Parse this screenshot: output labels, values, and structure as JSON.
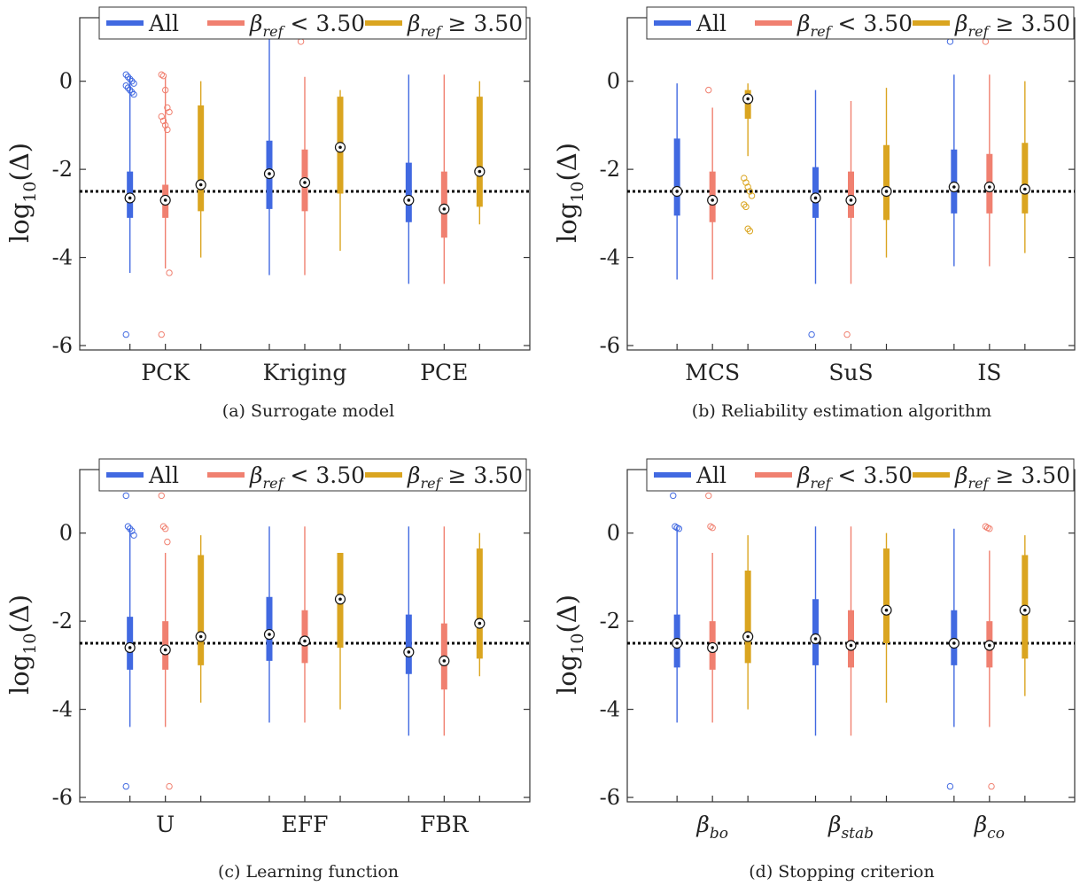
{
  "colors": {
    "all": "#4169e1",
    "low": "#f08070",
    "high": "#daa520",
    "ref_line": "#000000",
    "axis": "#333333"
  },
  "legend": {
    "all": "All",
    "low": {
      "symbol": "β",
      "sub": "ref",
      "rest": " < 3.50"
    },
    "high": {
      "symbol": "β",
      "sub": "ref",
      "rest": " ≥ 3.50"
    }
  },
  "chart_data": [
    {
      "type": "box",
      "caption": "(a) Surrogate model",
      "ylabel": {
        "text": "log",
        "sub": "10",
        "rest": "(Δ)"
      },
      "ylim": [
        -6.1,
        1.2
      ],
      "yticks": [
        0,
        -2,
        -4,
        -6
      ],
      "ytick_labels": [
        "0",
        "-2",
        "-4",
        "-6"
      ],
      "ref_line": -2.5,
      "categories": [
        {
          "label": "PCK",
          "groups": [
            {
              "series": "All",
              "whisker": [
                -4.35,
                0.1
              ],
              "box": [
                -3.1,
                -2.05
              ],
              "median": -2.65,
              "outliers": [
                0.15,
                0.1,
                0.05,
                0,
                -0.05,
                -0.1,
                -0.15,
                -0.2,
                -0.25,
                -0.3,
                -5.75
              ]
            },
            {
              "series": "β_ref < 3.50",
              "whisker": [
                -4.25,
                0.1
              ],
              "box": [
                -3.1,
                -2.35
              ],
              "median": -2.7,
              "outliers": [
                0.15,
                0.12,
                -0.2,
                -0.6,
                -0.7,
                -0.8,
                -0.9,
                -1.0,
                -1.1,
                -4.35,
                -5.75
              ]
            },
            {
              "series": "β_ref ≥ 3.50",
              "whisker": [
                -4.0,
                0.0
              ],
              "box": [
                -2.95,
                -0.55
              ],
              "median": -2.35,
              "outliers": []
            }
          ]
        },
        {
          "label": "Kriging",
          "groups": [
            {
              "series": "All",
              "whisker": [
                -4.4,
                0.95
              ],
              "box": [
                -2.9,
                -1.35
              ],
              "median": -2.1,
              "outliers": []
            },
            {
              "series": "β_ref < 3.50",
              "whisker": [
                -4.4,
                0.1
              ],
              "box": [
                -2.95,
                -1.55
              ],
              "median": -2.3,
              "outliers": [
                0.9
              ]
            },
            {
              "series": "β_ref ≥ 3.50",
              "whisker": [
                -3.85,
                -0.2
              ],
              "box": [
                -2.55,
                -0.35
              ],
              "median": -1.5,
              "outliers": []
            }
          ]
        },
        {
          "label": "PCE",
          "groups": [
            {
              "series": "All",
              "whisker": [
                -4.6,
                0.15
              ],
              "box": [
                -3.2,
                -1.85
              ],
              "median": -2.7,
              "outliers": []
            },
            {
              "series": "β_ref < 3.50",
              "whisker": [
                -4.6,
                0.15
              ],
              "box": [
                -3.55,
                -2.05
              ],
              "median": -2.9,
              "outliers": []
            },
            {
              "series": "β_ref ≥ 3.50",
              "whisker": [
                -3.25,
                0.0
              ],
              "box": [
                -2.85,
                -0.35
              ],
              "median": -2.05,
              "outliers": []
            }
          ]
        }
      ]
    },
    {
      "type": "box",
      "caption": "(b) Reliability estimation algorithm",
      "ylabel": {
        "text": "log",
        "sub": "10",
        "rest": "(Δ)"
      },
      "ylim": [
        -6.1,
        1.2
      ],
      "yticks": [
        0,
        -2,
        -4,
        -6
      ],
      "ytick_labels": [
        "0",
        "-2",
        "-4",
        "-6"
      ],
      "ref_line": -2.5,
      "categories": [
        {
          "label": "MCS",
          "groups": [
            {
              "series": "All",
              "whisker": [
                -4.5,
                -0.05
              ],
              "box": [
                -3.05,
                -1.3
              ],
              "median": -2.5,
              "outliers": []
            },
            {
              "series": "β_ref < 3.50",
              "whisker": [
                -4.5,
                -0.6
              ],
              "box": [
                -3.2,
                -2.05
              ],
              "median": -2.7,
              "outliers": [
                -0.2
              ]
            },
            {
              "series": "β_ref ≥ 3.50",
              "whisker": [
                -1.7,
                -0.05
              ],
              "box": [
                -0.85,
                -0.2
              ],
              "median": -0.4,
              "outliers": [
                -2.2,
                -2.3,
                -2.4,
                -2.5,
                -2.6,
                -2.8,
                -2.85,
                -3.35,
                -3.4
              ]
            }
          ]
        },
        {
          "label": "SuS",
          "groups": [
            {
              "series": "All",
              "whisker": [
                -4.6,
                -0.2
              ],
              "box": [
                -3.1,
                -1.95
              ],
              "median": -2.65,
              "outliers": [
                -5.75
              ]
            },
            {
              "series": "β_ref < 3.50",
              "whisker": [
                -4.6,
                -0.45
              ],
              "box": [
                -3.1,
                -2.05
              ],
              "median": -2.7,
              "outliers": [
                -5.75
              ]
            },
            {
              "series": "β_ref ≥ 3.50",
              "whisker": [
                -4.0,
                -0.15
              ],
              "box": [
                -3.15,
                -1.45
              ],
              "median": -2.5,
              "outliers": []
            }
          ]
        },
        {
          "label": "IS",
          "groups": [
            {
              "series": "All",
              "whisker": [
                -4.2,
                0.15
              ],
              "box": [
                -3.0,
                -1.55
              ],
              "median": -2.4,
              "outliers": [
                0.9
              ]
            },
            {
              "series": "β_ref < 3.50",
              "whisker": [
                -4.2,
                0.15
              ],
              "box": [
                -3.0,
                -1.65
              ],
              "median": -2.4,
              "outliers": [
                0.9
              ]
            },
            {
              "series": "β_ref ≥ 3.50",
              "whisker": [
                -3.9,
                0.0
              ],
              "box": [
                -3.0,
                -1.4
              ],
              "median": -2.45,
              "outliers": []
            }
          ]
        }
      ]
    },
    {
      "type": "box",
      "caption": "(c) Learning function",
      "ylabel": {
        "text": "log",
        "sub": "10",
        "rest": "(Δ)"
      },
      "ylim": [
        -6.1,
        1.2
      ],
      "yticks": [
        0,
        -2,
        -4,
        -6
      ],
      "ytick_labels": [
        "0",
        "-2",
        "-4",
        "-6"
      ],
      "ref_line": -2.5,
      "categories": [
        {
          "label": "U",
          "groups": [
            {
              "series": "All",
              "whisker": [
                -4.4,
                0.1
              ],
              "box": [
                -3.1,
                -1.9
              ],
              "median": -2.6,
              "outliers": [
                0.85,
                0.15,
                0.1,
                0.05,
                -0.05,
                -5.75
              ]
            },
            {
              "series": "β_ref < 3.50",
              "whisker": [
                -4.4,
                -0.45
              ],
              "box": [
                -3.1,
                -2.0
              ],
              "median": -2.65,
              "outliers": [
                0.85,
                0.15,
                0.1,
                -0.2,
                -5.75
              ]
            },
            {
              "series": "β_ref ≥ 3.50",
              "whisker": [
                -3.85,
                -0.05
              ],
              "box": [
                -3.0,
                -0.5
              ],
              "median": -2.35,
              "outliers": []
            }
          ]
        },
        {
          "label": "EFF",
          "groups": [
            {
              "series": "All",
              "whisker": [
                -4.3,
                0.15
              ],
              "box": [
                -2.9,
                -1.45
              ],
              "median": -2.3,
              "outliers": []
            },
            {
              "series": "β_ref < 3.50",
              "whisker": [
                -4.3,
                0.15
              ],
              "box": [
                -2.95,
                -1.75
              ],
              "median": -2.45,
              "outliers": []
            },
            {
              "series": "β_ref ≥ 3.50",
              "whisker": [
                -4.0,
                -0.45
              ],
              "box": [
                -2.6,
                -0.45
              ],
              "median": -1.5,
              "outliers": []
            }
          ]
        },
        {
          "label": "FBR",
          "groups": [
            {
              "series": "All",
              "whisker": [
                -4.6,
                0.15
              ],
              "box": [
                -3.2,
                -1.85
              ],
              "median": -2.7,
              "outliers": []
            },
            {
              "series": "β_ref < 3.50",
              "whisker": [
                -4.6,
                0.15
              ],
              "box": [
                -3.55,
                -2.05
              ],
              "median": -2.9,
              "outliers": []
            },
            {
              "series": "β_ref ≥ 3.50",
              "whisker": [
                -3.25,
                0.0
              ],
              "box": [
                -2.85,
                -0.35
              ],
              "median": -2.05,
              "outliers": []
            }
          ]
        }
      ]
    },
    {
      "type": "box",
      "caption": "(d) Stopping criterion",
      "ylabel": {
        "text": "log",
        "sub": "10",
        "rest": "(Δ)"
      },
      "ylim": [
        -6.1,
        1.2
      ],
      "yticks": [
        0,
        -2,
        -4,
        -6
      ],
      "ytick_labels": [
        "0",
        "-2",
        "-4",
        "-6"
      ],
      "ref_line": -2.5,
      "categories": [
        {
          "label": "β",
          "sub": "bo",
          "groups": [
            {
              "series": "All",
              "whisker": [
                -4.3,
                0.1
              ],
              "box": [
                -3.05,
                -1.85
              ],
              "median": -2.5,
              "outliers": [
                0.85,
                0.15,
                0.12,
                0.1
              ]
            },
            {
              "series": "β_ref < 3.50",
              "whisker": [
                -4.3,
                -0.45
              ],
              "box": [
                -3.1,
                -2.0
              ],
              "median": -2.6,
              "outliers": [
                0.85,
                0.15,
                0.12
              ]
            },
            {
              "series": "β_ref ≥ 3.50",
              "whisker": [
                -4.0,
                -0.05
              ],
              "box": [
                -2.95,
                -0.85
              ],
              "median": -2.35,
              "outliers": []
            }
          ]
        },
        {
          "label": "β",
          "sub": "stab",
          "groups": [
            {
              "series": "All",
              "whisker": [
                -4.6,
                0.15
              ],
              "box": [
                -3.0,
                -1.5
              ],
              "median": -2.4,
              "outliers": []
            },
            {
              "series": "β_ref < 3.50",
              "whisker": [
                -4.6,
                0.15
              ],
              "box": [
                -3.05,
                -1.75
              ],
              "median": -2.55,
              "outliers": []
            },
            {
              "series": "β_ref ≥ 3.50",
              "whisker": [
                -3.85,
                0.0
              ],
              "box": [
                -2.5,
                -0.35
              ],
              "median": -1.75,
              "outliers": []
            }
          ]
        },
        {
          "label": "β",
          "sub": "co",
          "groups": [
            {
              "series": "All",
              "whisker": [
                -4.4,
                0.1
              ],
              "box": [
                -3.0,
                -1.75
              ],
              "median": -2.5,
              "outliers": [
                -5.75
              ]
            },
            {
              "series": "β_ref < 3.50",
              "whisker": [
                -4.4,
                -0.4
              ],
              "box": [
                -3.05,
                -2.0
              ],
              "median": -2.55,
              "outliers": [
                0.15,
                0.12,
                0.1,
                -5.75
              ]
            },
            {
              "series": "β_ref ≥ 3.50",
              "whisker": [
                -3.7,
                -0.05
              ],
              "box": [
                -2.85,
                -0.5
              ],
              "median": -1.75,
              "outliers": []
            }
          ]
        }
      ]
    }
  ]
}
